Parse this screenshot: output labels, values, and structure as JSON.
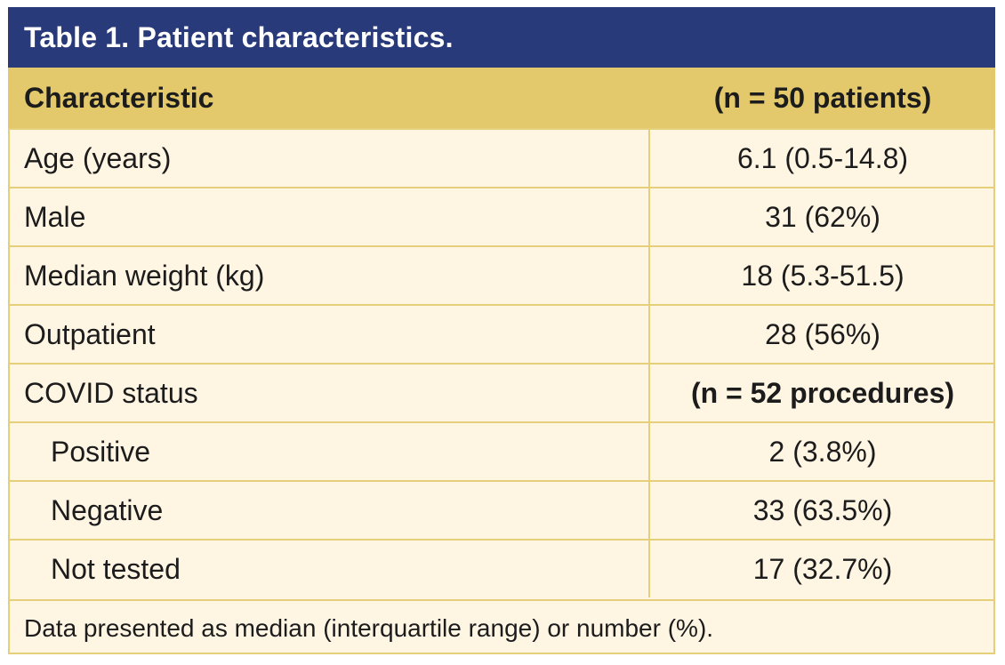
{
  "table": {
    "title": "Table 1. Patient characteristics.",
    "header": {
      "characteristic": "Characteristic",
      "value": "(n = 50 patients)"
    },
    "rows": [
      {
        "label": "Age (years)",
        "value": "6.1 (0.5-14.8)"
      },
      {
        "label": "Male",
        "value": "31 (62%)"
      },
      {
        "label": "Median weight (kg)",
        "value": "18 (5.3-51.5)"
      },
      {
        "label": "Outpatient",
        "value": "28 (56%)"
      },
      {
        "label": "COVID status",
        "value": "(n = 52 procedures)"
      },
      {
        "label": "Positive",
        "value": "2 (3.8%)"
      },
      {
        "label": "Negative",
        "value": "33 (63.5%)"
      },
      {
        "label": "Not tested",
        "value": "17 (32.7%)"
      }
    ],
    "footnote": "Data presented as median (interquartile range) or number (%)."
  },
  "colors": {
    "title_bar": "#283a7a",
    "header_row": "#e3c96b",
    "body_background": "#fff5e3",
    "grid_lines": "#e6cf7a"
  }
}
